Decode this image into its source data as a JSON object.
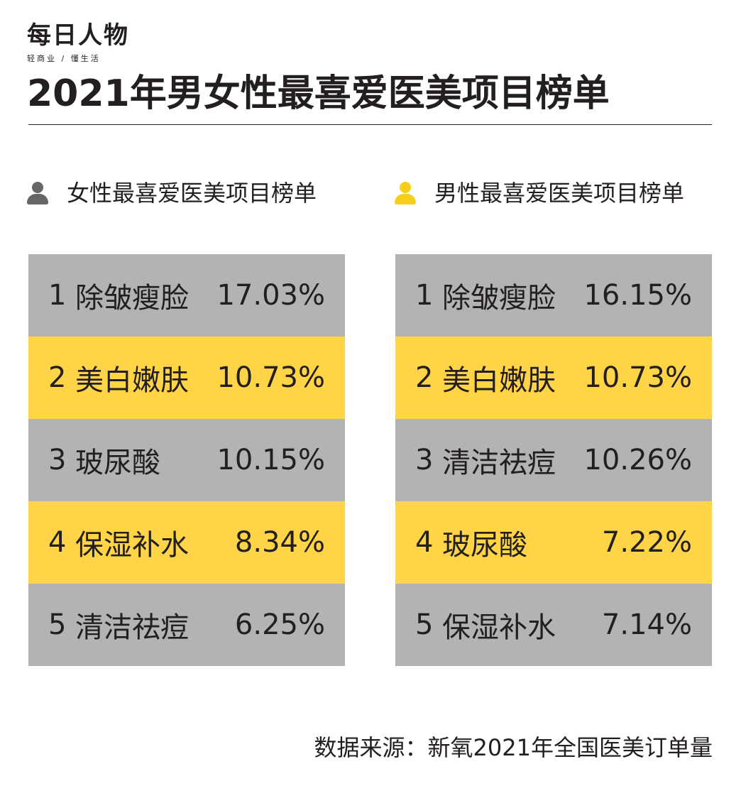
{
  "brand": {
    "name": "每日人物",
    "tagline": "轻商业 / 懂生活"
  },
  "title": "2021年男女性最喜爱医美项目榜单",
  "colors": {
    "gray": "#b3b3b3",
    "yellow": "#ffd447",
    "icon_female": "#666666",
    "icon_male": "#f5cf1c",
    "text": "#231f20"
  },
  "headings": {
    "female": "女性最喜爱医美项目榜单",
    "male": "男性最喜爱医美项目榜单"
  },
  "chart_data": [
    {
      "type": "table",
      "title": "女性最喜爱医美项目榜单",
      "rows": [
        {
          "rank": "1",
          "item": "除皱瘦脸",
          "value": "17.03%"
        },
        {
          "rank": "2",
          "item": "美白嫩肤",
          "value": "10.73%"
        },
        {
          "rank": "3",
          "item": "玻尿酸",
          "value": "10.15%"
        },
        {
          "rank": "4",
          "item": "保湿补水",
          "value": "8.34%"
        },
        {
          "rank": "5",
          "item": "清洁祛痘",
          "value": "6.25%"
        }
      ]
    },
    {
      "type": "table",
      "title": "男性最喜爱医美项目榜单",
      "rows": [
        {
          "rank": "1",
          "item": "除皱瘦脸",
          "value": "16.15%"
        },
        {
          "rank": "2",
          "item": "美白嫩肤",
          "value": "10.73%"
        },
        {
          "rank": "3",
          "item": "清洁祛痘",
          "value": "10.26%"
        },
        {
          "rank": "4",
          "item": "玻尿酸",
          "value": "7.22%"
        },
        {
          "rank": "5",
          "item": "保湿补水",
          "value": "7.14%"
        }
      ]
    }
  ],
  "source": "数据来源：新氧2021年全国医美订单量"
}
